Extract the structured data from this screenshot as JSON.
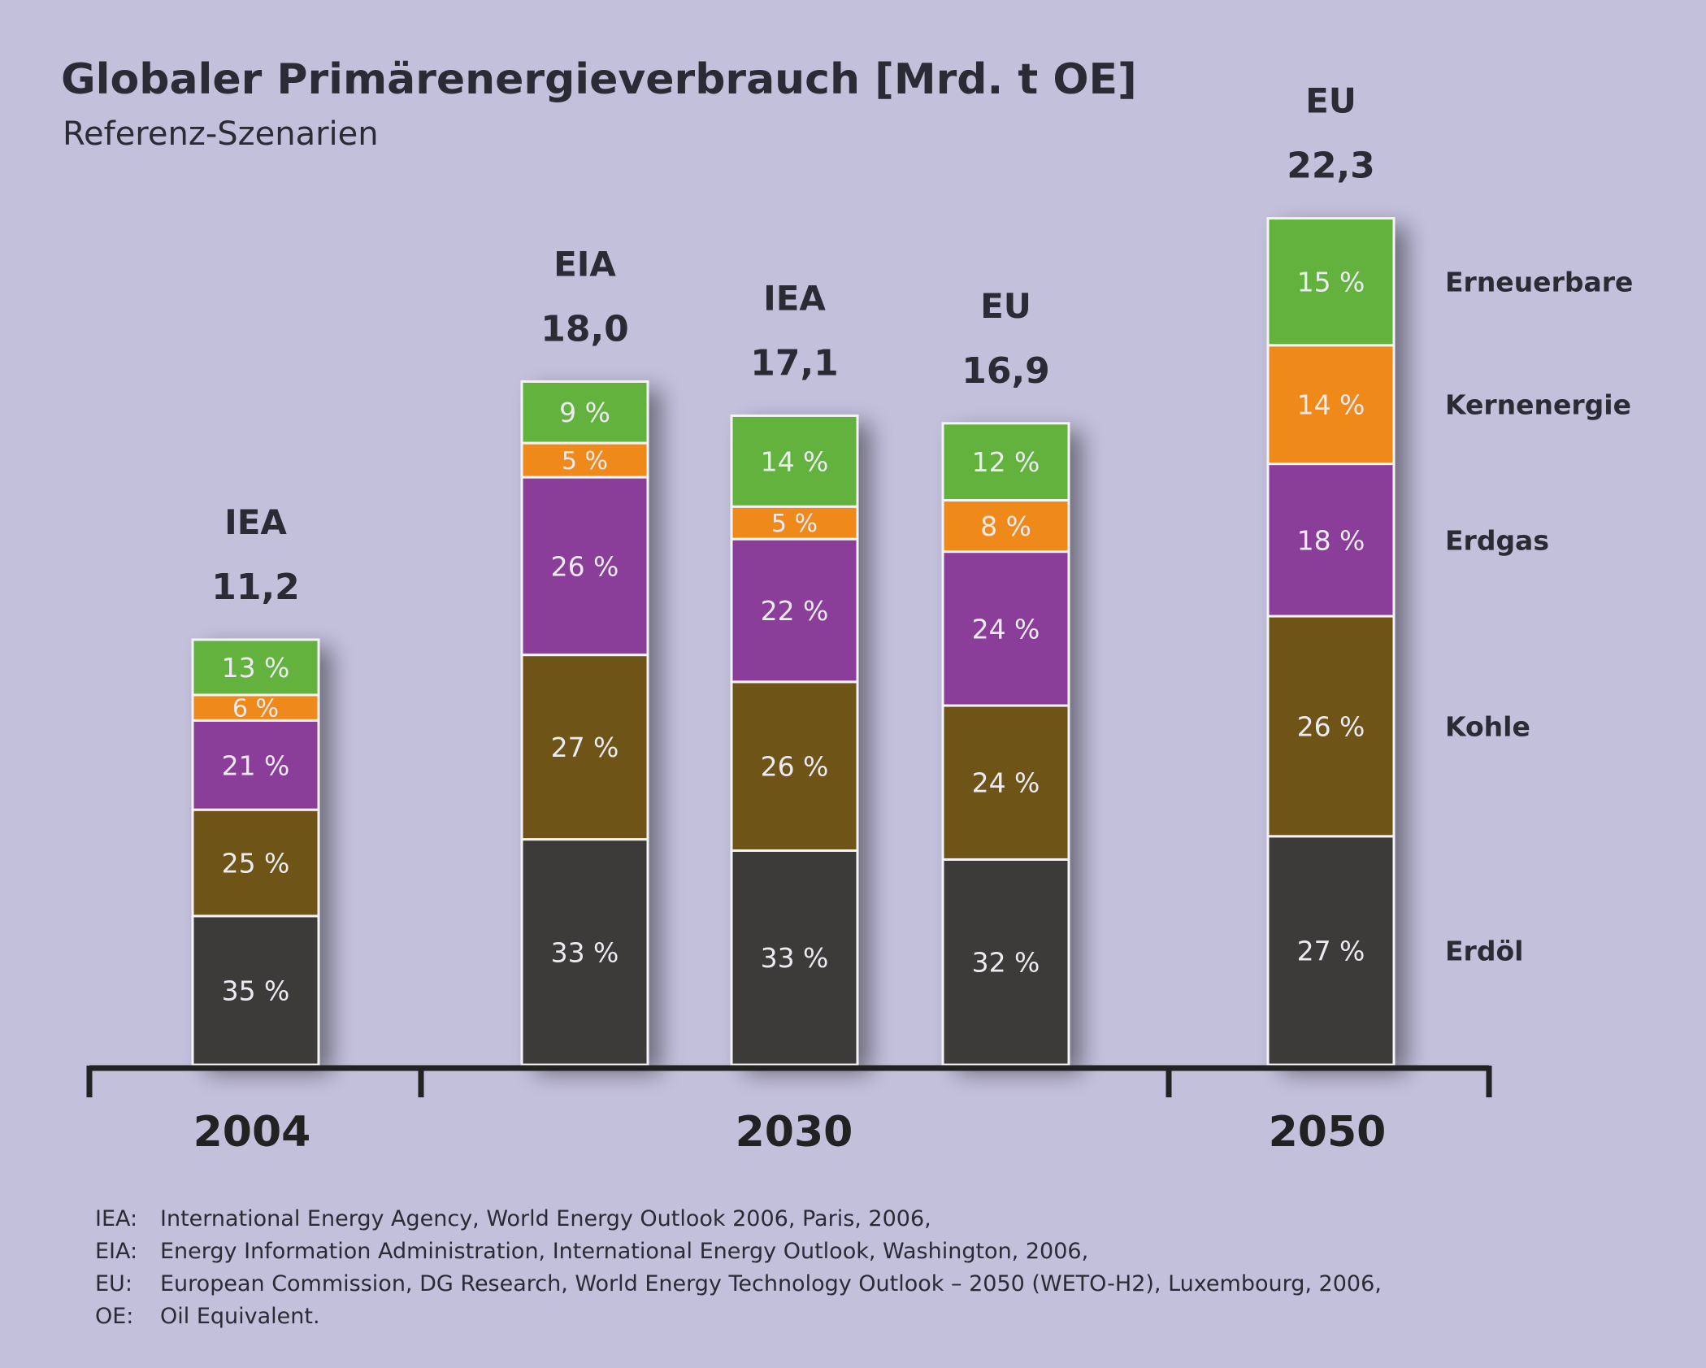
{
  "chart_data": {
    "type": "bar",
    "title": "Globaler Primärenergieverbrauch [Mrd. t OE]",
    "subtitle": "Referenz-Szenarien",
    "stacked": true,
    "groups": [
      {
        "label": "2004",
        "bars": [
          0
        ]
      },
      {
        "label": "2030",
        "bars": [
          1,
          2,
          3
        ]
      },
      {
        "label": "2050",
        "bars": [
          4
        ]
      }
    ],
    "bars": [
      {
        "source": "IEA",
        "year": "2004",
        "total": 11.2,
        "total_label": "11,2"
      },
      {
        "source": "EIA",
        "year": "2030",
        "total": 18.0,
        "total_label": "18,0"
      },
      {
        "source": "IEA",
        "year": "2030",
        "total": 17.1,
        "total_label": "17,1"
      },
      {
        "source": "EU",
        "year": "2030",
        "total": 16.9,
        "total_label": "16,9"
      },
      {
        "source": "EU",
        "year": "2050",
        "total": 22.3,
        "total_label": "22,3"
      }
    ],
    "series": [
      {
        "name": "Erdöl",
        "color": "#3d3b3a",
        "values": [
          35,
          33,
          33,
          32,
          27
        ],
        "labels": [
          "35 %",
          "33 %",
          "33 %",
          "32 %",
          "27 %"
        ]
      },
      {
        "name": "Kohle",
        "color": "#6f5417",
        "values": [
          25,
          27,
          26,
          24,
          26
        ],
        "labels": [
          "25 %",
          "27 %",
          "26 %",
          "24 %",
          "26 %"
        ]
      },
      {
        "name": "Erdgas",
        "color": "#8a3e9a",
        "values": [
          21,
          26,
          22,
          24,
          18
        ],
        "labels": [
          "21 %",
          "26 %",
          "22 %",
          "24 %",
          "18 %"
        ]
      },
      {
        "name": "Kernenergie",
        "color": "#ef8a1a",
        "values": [
          6,
          5,
          5,
          8,
          14
        ],
        "labels": [
          "6 %",
          "5 %",
          "5 %",
          "8 %",
          "14 %"
        ]
      },
      {
        "name": "Erneuerbare",
        "color": "#63b23e",
        "values": [
          13,
          9,
          14,
          12,
          15
        ],
        "labels": [
          "13 %",
          "9 %",
          "14 %",
          "12 %",
          "15 %"
        ]
      }
    ],
    "legend_placement": "right"
  },
  "footnotes": [
    {
      "abbr": "IEA:",
      "text": "International Energy Agency, World Energy Outlook 2006, Paris, 2006,"
    },
    {
      "abbr": "EIA:",
      "text": "Energy Information Administration, International Energy Outlook, Washington, 2006,"
    },
    {
      "abbr": "EU:",
      "text": "European Commission, DG Research, World Energy Technology Outlook – 2050 (WETO-H2), Luxembourg, 2006,"
    },
    {
      "abbr": "OE:",
      "text": "Oil Equivalent."
    }
  ]
}
